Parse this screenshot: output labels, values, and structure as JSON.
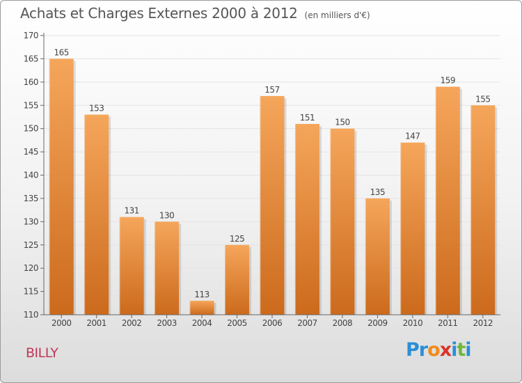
{
  "title": "Achats et Charges Externes 2000 à 2012",
  "unit_note": "(en milliers d'€)",
  "city": "BILLY",
  "brand": {
    "letters": [
      "P",
      "r",
      "o",
      "x",
      "i",
      "t",
      "i"
    ],
    "colors": [
      "#2a8fd6",
      "#2a8fd6",
      "#f08a1c",
      "#d9352a",
      "#2a8fd6",
      "#6fb83a",
      "#2a8fd6"
    ]
  },
  "colors": {
    "bar_top": "#f5a65b",
    "bar_bottom": "#cc6a1c",
    "axis": "#666666",
    "grid": "#e4e4e4",
    "text": "#444444"
  },
  "chart_data": {
    "type": "bar",
    "title": "Achats et Charges Externes 2000 à 2012",
    "categories": [
      "2000",
      "2001",
      "2002",
      "2003",
      "2004",
      "2005",
      "2006",
      "2007",
      "2008",
      "2009",
      "2010",
      "2011",
      "2012"
    ],
    "values": [
      165,
      153,
      131,
      130,
      113,
      125,
      157,
      151,
      150,
      135,
      147,
      159,
      155
    ],
    "ylim": [
      110,
      170
    ],
    "yticks": [
      110,
      115,
      120,
      125,
      130,
      135,
      140,
      145,
      150,
      155,
      160,
      165,
      170
    ],
    "grid": true,
    "data_labels": true
  }
}
